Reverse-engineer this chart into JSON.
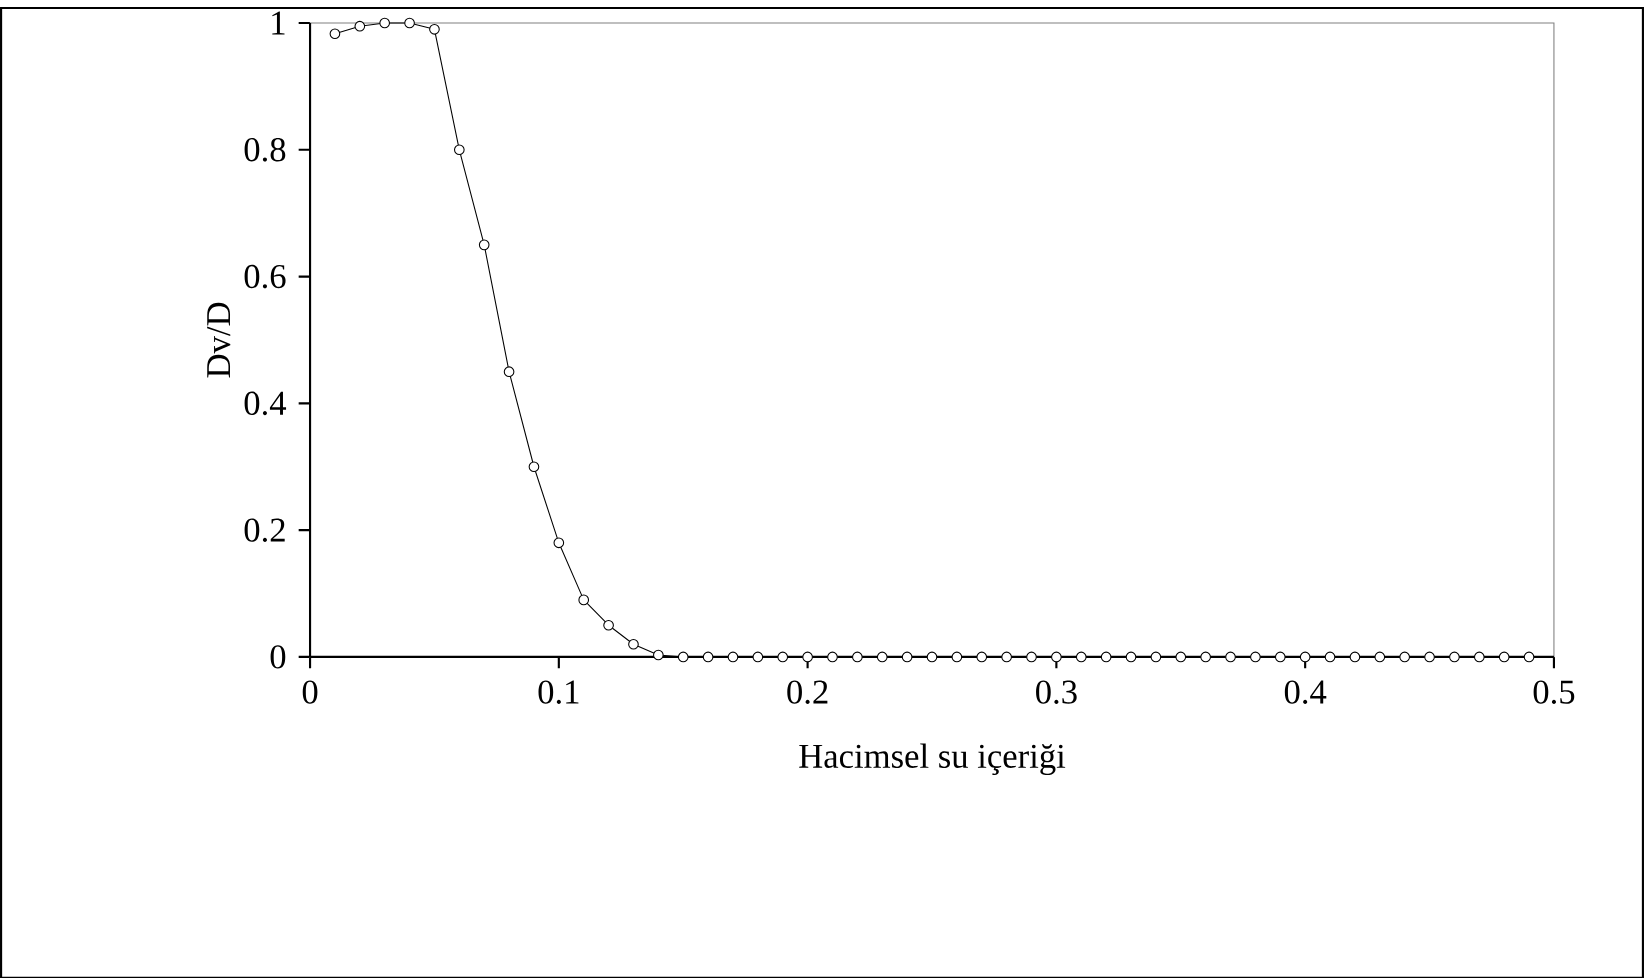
{
  "chart_data": {
    "type": "line",
    "xlabel": "Hacimsel su içeriği",
    "ylabel": "Dv/D",
    "x": [
      0.01,
      0.02,
      0.03,
      0.04,
      0.05,
      0.06,
      0.07,
      0.08,
      0.09,
      0.1,
      0.11,
      0.12,
      0.13,
      0.14,
      0.15,
      0.16,
      0.17,
      0.18,
      0.19,
      0.2,
      0.21,
      0.22,
      0.23,
      0.24,
      0.25,
      0.26,
      0.27,
      0.28,
      0.29,
      0.3,
      0.31,
      0.32,
      0.33,
      0.34,
      0.35,
      0.36,
      0.37,
      0.38,
      0.39,
      0.4,
      0.41,
      0.42,
      0.43,
      0.44,
      0.45,
      0.46,
      0.47,
      0.48,
      0.49
    ],
    "series": [
      {
        "color": "#000000",
        "values": [
          0.983,
          0.995,
          1.0,
          1.0,
          0.99,
          0.8,
          0.65,
          0.45,
          0.3,
          0.18,
          0.09,
          0.05,
          0.02,
          0.003,
          0,
          0,
          0,
          0,
          0,
          0,
          0,
          0,
          0,
          0,
          0,
          0,
          0,
          0,
          0,
          0,
          0,
          0,
          0,
          0,
          0,
          0,
          0,
          0,
          0,
          0,
          0,
          0,
          0,
          0,
          0,
          0,
          0,
          0,
          0
        ]
      }
    ],
    "xlim": [
      0,
      0.5
    ],
    "xticks": [
      0,
      0.1,
      0.2,
      0.3,
      0.4,
      0.5
    ],
    "ylim": [
      0,
      1
    ],
    "yticks": [
      0,
      0.2,
      0.4,
      0.6,
      0.8,
      1
    ],
    "grid": false,
    "marker": "circle",
    "line_style": "solid"
  }
}
